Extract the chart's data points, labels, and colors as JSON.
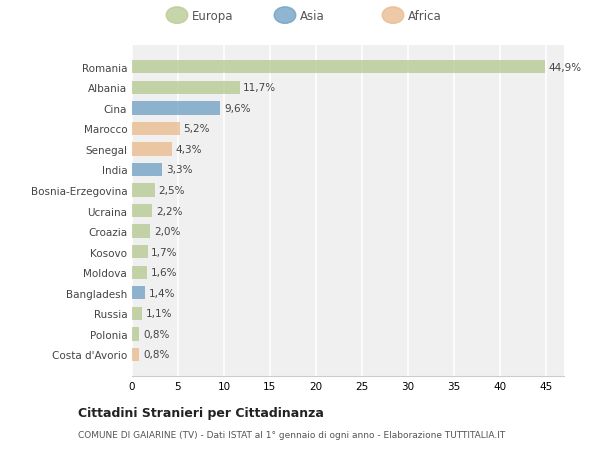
{
  "countries": [
    "Romania",
    "Albania",
    "Cina",
    "Marocco",
    "Senegal",
    "India",
    "Bosnia-Erzegovina",
    "Ucraina",
    "Croazia",
    "Kosovo",
    "Moldova",
    "Bangladesh",
    "Russia",
    "Polonia",
    "Costa d'Avorio"
  ],
  "values": [
    44.9,
    11.7,
    9.6,
    5.2,
    4.3,
    3.3,
    2.5,
    2.2,
    2.0,
    1.7,
    1.6,
    1.4,
    1.1,
    0.8,
    0.8
  ],
  "labels": [
    "44,9%",
    "11,7%",
    "9,6%",
    "5,2%",
    "4,3%",
    "3,3%",
    "2,5%",
    "2,2%",
    "2,0%",
    "1,7%",
    "1,6%",
    "1,4%",
    "1,1%",
    "0,8%",
    "0,8%"
  ],
  "continents": [
    "Europa",
    "Europa",
    "Asia",
    "Africa",
    "Africa",
    "Asia",
    "Europa",
    "Europa",
    "Europa",
    "Europa",
    "Europa",
    "Asia",
    "Europa",
    "Europa",
    "Africa"
  ],
  "colors": {
    "Europa": "#b5c98e",
    "Asia": "#6b9dc2",
    "Africa": "#e8b88a"
  },
  "title": "Cittadini Stranieri per Cittadinanza",
  "subtitle": "COMUNE DI GAIARINE (TV) - Dati ISTAT al 1° gennaio di ogni anno - Elaborazione TUTTITALIA.IT",
  "xlim": [
    0,
    47
  ],
  "xticks": [
    0,
    5,
    10,
    15,
    20,
    25,
    30,
    35,
    40,
    45
  ],
  "background_color": "#ffffff",
  "plot_bg_color": "#f0f0f0",
  "grid_color": "#ffffff",
  "bar_alpha": 0.75,
  "bar_height": 0.65
}
